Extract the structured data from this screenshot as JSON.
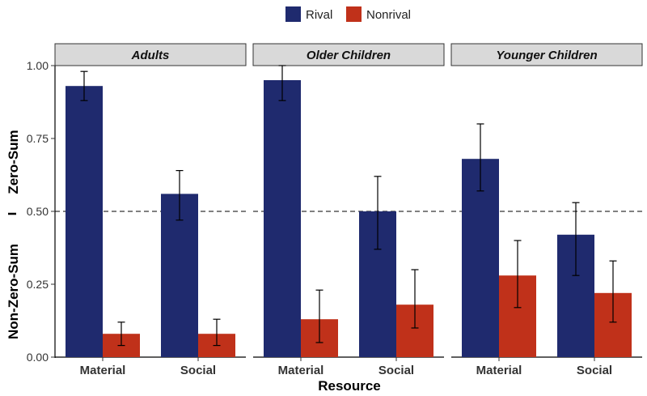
{
  "chart_data": {
    "type": "bar",
    "facets": [
      "Adults",
      "Older Children",
      "Younger Children"
    ],
    "categories": [
      "Material",
      "Social"
    ],
    "series": [
      {
        "name": "Rival",
        "color": "#1f2a6e",
        "values": [
          [
            0.93,
            0.56
          ],
          [
            0.95,
            0.5
          ],
          [
            0.68,
            0.42
          ]
        ],
        "error_low": [
          [
            0.88,
            0.47
          ],
          [
            0.88,
            0.37
          ],
          [
            0.57,
            0.28
          ]
        ],
        "error_high": [
          [
            0.98,
            0.64
          ],
          [
            1.0,
            0.62
          ],
          [
            0.8,
            0.53
          ]
        ]
      },
      {
        "name": "Nonrival",
        "color": "#c0311a",
        "values": [
          [
            0.08,
            0.08
          ],
          [
            0.13,
            0.18
          ],
          [
            0.28,
            0.22
          ]
        ],
        "error_low": [
          [
            0.04,
            0.04
          ],
          [
            0.05,
            0.1
          ],
          [
            0.17,
            0.12
          ]
        ],
        "error_high": [
          [
            0.12,
            0.13
          ],
          [
            0.23,
            0.3
          ],
          [
            0.4,
            0.33
          ]
        ]
      }
    ],
    "xlabel": "Resource",
    "ylabel": "Non-Zero-Sum   –   Zero-Sum",
    "ylabel_parts": [
      "Non-Zero-Sum",
      "Zero-Sum"
    ],
    "ylim": [
      0,
      1.0
    ],
    "yticks": [
      "0.00",
      "0.25",
      "0.50",
      "0.75",
      "1.00"
    ],
    "reference_line": 0.5,
    "legend_position": "top"
  }
}
